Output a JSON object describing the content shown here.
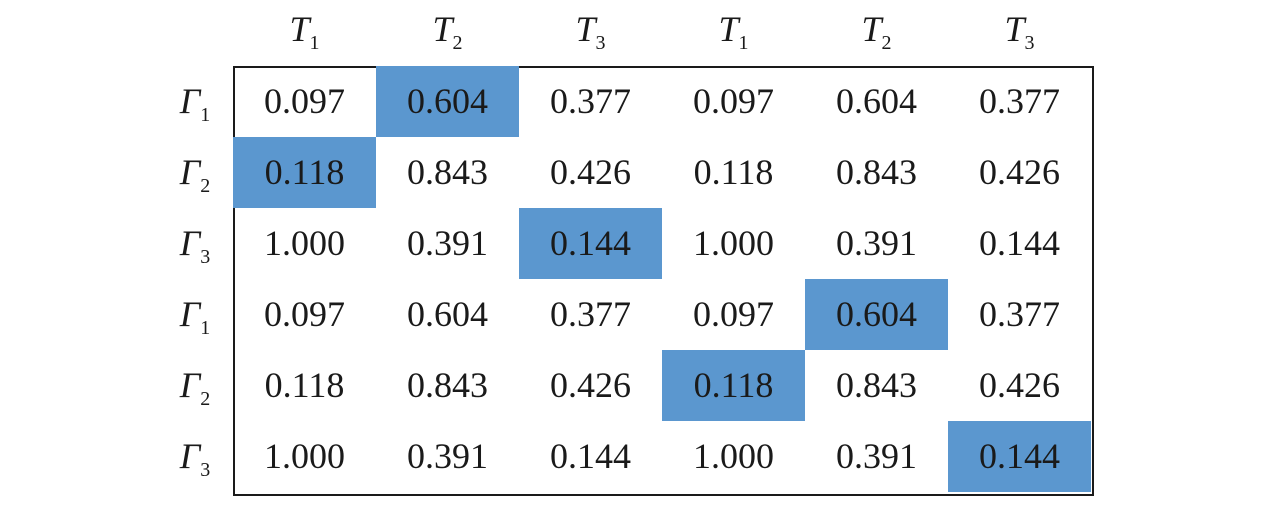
{
  "col_headers": [
    {
      "base": "T",
      "sub": "1"
    },
    {
      "base": "T",
      "sub": "2"
    },
    {
      "base": "T",
      "sub": "3"
    },
    {
      "base": "T",
      "sub": "1"
    },
    {
      "base": "T",
      "sub": "2"
    },
    {
      "base": "T",
      "sub": "3"
    }
  ],
  "row_headers": [
    {
      "base": "Γ",
      "sub": "1"
    },
    {
      "base": "Γ",
      "sub": "2"
    },
    {
      "base": "Γ",
      "sub": "3"
    },
    {
      "base": "Γ",
      "sub": "1"
    },
    {
      "base": "Γ",
      "sub": "2"
    },
    {
      "base": "Γ",
      "sub": "3"
    }
  ],
  "rows": [
    [
      "0.097",
      "0.604",
      "0.377",
      "0.097",
      "0.604",
      "0.377"
    ],
    [
      "0.118",
      "0.843",
      "0.426",
      "0.118",
      "0.843",
      "0.426"
    ],
    [
      "1.000",
      "0.391",
      "0.144",
      "1.000",
      "0.391",
      "0.144"
    ],
    [
      "0.097",
      "0.604",
      "0.377",
      "0.097",
      "0.604",
      "0.377"
    ],
    [
      "0.118",
      "0.843",
      "0.426",
      "0.118",
      "0.843",
      "0.426"
    ],
    [
      "1.000",
      "0.391",
      "0.144",
      "1.000",
      "0.391",
      "0.144"
    ]
  ],
  "highlight_color": "#5b97cf",
  "highlighted_cells": [
    [
      0,
      1
    ],
    [
      1,
      0
    ],
    [
      2,
      2
    ],
    [
      3,
      4
    ],
    [
      4,
      3
    ],
    [
      5,
      5
    ]
  ]
}
